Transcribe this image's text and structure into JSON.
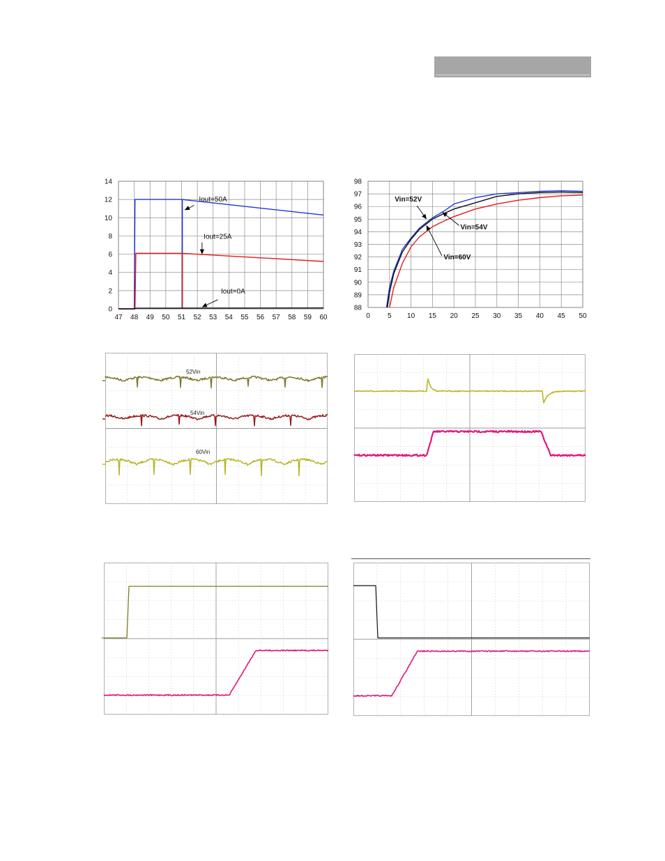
{
  "colors": {
    "blue": "#1f35d6",
    "red": "#e51a1a",
    "black": "#111111",
    "olive": "#7f7a2e",
    "darkred": "#9b1b1b",
    "yellowgreen": "#b9b62c",
    "magenta": "#e0177a",
    "scope_grid": "#b8b8b8"
  },
  "chart_data": [
    {
      "type": "line",
      "x": [
        47,
        48,
        49,
        50,
        51,
        52,
        53,
        54,
        55,
        56,
        57,
        58,
        59,
        60
      ],
      "xlim": [
        47,
        60
      ],
      "ylim": [
        0,
        14
      ],
      "xticks": [
        "47",
        "48",
        "49",
        "50",
        "51",
        "52",
        "53",
        "54",
        "55",
        "56",
        "57",
        "58",
        "59",
        "60"
      ],
      "yticks": [
        "0",
        "2",
        "4",
        "6",
        "8",
        "10",
        "12",
        "14"
      ],
      "grid": true,
      "series": [
        {
          "name": "Iout=50A",
          "color": "blue",
          "points": [
            [
              47,
              0
            ],
            [
              48,
              0
            ],
            [
              48.05,
              12
            ],
            [
              51,
              12
            ],
            [
              60,
              10.3
            ]
          ],
          "points2": [
            [
              51.05,
              0
            ],
            [
              51.05,
              12
            ]
          ]
        },
        {
          "name": "Iout=25A",
          "color": "red",
          "points": [
            [
              47,
              0
            ],
            [
              48.05,
              0
            ],
            [
              48.1,
              6.1
            ],
            [
              51,
              6.1
            ],
            [
              60,
              5.2
            ]
          ],
          "points2": [
            [
              51.05,
              0
            ],
            [
              51.05,
              6.1
            ]
          ]
        },
        {
          "name": "Iout=0A",
          "color": "black",
          "points": [
            [
              47,
              0
            ],
            [
              48,
              0
            ],
            [
              48.1,
              0.07
            ],
            [
              60,
              0.1
            ]
          ]
        }
      ],
      "annotations": [
        {
          "text": "Iout=50A",
          "x": 52.1,
          "y": 11.8
        },
        {
          "text": "Iout=25A",
          "x": 52.4,
          "y": 7.7
        },
        {
          "text": "Iout=0A",
          "x": 53.5,
          "y": 1.7
        }
      ]
    },
    {
      "type": "line",
      "xlim": [
        0,
        50
      ],
      "ylim": [
        88,
        98
      ],
      "xticks": [
        "0",
        "5",
        "10",
        "15",
        "20",
        "25",
        "30",
        "35",
        "40",
        "45",
        "50"
      ],
      "yticks": [
        "88",
        "89",
        "90",
        "91",
        "92",
        "93",
        "94",
        "95",
        "96",
        "97",
        "98"
      ],
      "grid": true,
      "series": [
        {
          "name": "Vin=52V",
          "color": "blue",
          "points": [
            [
              4.3,
              88
            ],
            [
              5,
              89.6
            ],
            [
              6,
              90.9
            ],
            [
              8,
              92.6
            ],
            [
              10,
              93.5
            ],
            [
              12,
              94.3
            ],
            [
              15,
              95.1
            ],
            [
              18,
              95.7
            ],
            [
              20,
              96.2
            ],
            [
              25,
              96.7
            ],
            [
              30,
              97.0
            ],
            [
              35,
              97.1
            ],
            [
              40,
              97.2
            ],
            [
              45,
              97.25
            ],
            [
              50,
              97.2
            ]
          ]
        },
        {
          "name": "Vin=54V",
          "color": "black",
          "points": [
            [
              4.5,
              88
            ],
            [
              5,
              89.2
            ],
            [
              6,
              90.7
            ],
            [
              8,
              92.4
            ],
            [
              10,
              93.4
            ],
            [
              12,
              94.2
            ],
            [
              15,
              95.0
            ],
            [
              18,
              95.5
            ],
            [
              20,
              95.8
            ],
            [
              25,
              96.3
            ],
            [
              30,
              96.8
            ],
            [
              35,
              97.0
            ],
            [
              40,
              97.1
            ],
            [
              45,
              97.15
            ],
            [
              50,
              97.1
            ]
          ]
        },
        {
          "name": "Vin=60V",
          "color": "red",
          "points": [
            [
              5,
              88
            ],
            [
              6,
              89.6
            ],
            [
              8,
              91.5
            ],
            [
              10,
              92.8
            ],
            [
              12,
              93.6
            ],
            [
              15,
              94.4
            ],
            [
              18,
              94.9
            ],
            [
              20,
              95.2
            ],
            [
              25,
              95.8
            ],
            [
              30,
              96.2
            ],
            [
              35,
              96.5
            ],
            [
              40,
              96.7
            ],
            [
              45,
              96.85
            ],
            [
              50,
              96.9
            ]
          ]
        }
      ],
      "annotations": [
        {
          "text": "Vin=52V",
          "x": 6.2,
          "y": 96.4
        },
        {
          "text": "Vin=54V",
          "x": 21.5,
          "y": 94.2
        },
        {
          "text": "Vin=60V",
          "x": 17.6,
          "y": 91.8
        }
      ]
    },
    {
      "type": "line",
      "grid": true,
      "divisions": [
        10,
        8
      ],
      "series": [
        {
          "name": "52Vin",
          "color": "olive"
        },
        {
          "name": "54Vin",
          "color": "darkred"
        },
        {
          "name": "60Vin",
          "color": "yellowgreen"
        }
      ]
    },
    {
      "type": "line",
      "grid": true,
      "divisions": [
        10,
        8
      ],
      "series": [
        {
          "color": "yellowgreen"
        },
        {
          "color": "magenta"
        }
      ]
    },
    {
      "type": "line",
      "grid": true,
      "divisions": [
        10,
        8
      ],
      "series": [
        {
          "color": "olive"
        },
        {
          "color": "magenta"
        }
      ]
    },
    {
      "type": "line",
      "grid": true,
      "divisions": [
        10,
        8
      ],
      "series": [
        {
          "color": "black"
        },
        {
          "color": "magenta"
        }
      ]
    }
  ]
}
